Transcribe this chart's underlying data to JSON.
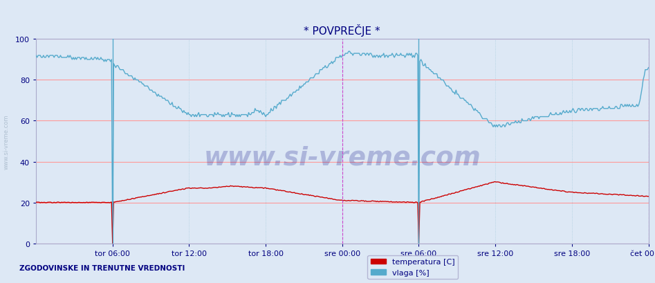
{
  "title": "* POVPREČJE *",
  "title_color": "#000080",
  "bg_color": "#dde8f5",
  "plot_bg_color": "#dde8f5",
  "ylim": [
    0,
    100
  ],
  "yticks": [
    0,
    20,
    40,
    60,
    80,
    100
  ],
  "grid_color_major": "#ff9999",
  "grid_color_minor": "#aaccdd",
  "xtick_labels": [
    "tor 06:00",
    "tor 12:00",
    "tor 18:00",
    "sre 00:00",
    "sre 06:00",
    "sre 12:00",
    "sre 18:00",
    "čet 00:00"
  ],
  "xtick_positions": [
    72,
    144,
    216,
    288,
    360,
    432,
    504,
    576
  ],
  "n_points": 577,
  "temp_color": "#cc0000",
  "hum_color": "#55aacc",
  "vline_solid_color": "#55aacc",
  "vline_dashed_color": "#cc44cc",
  "footer_text": "ZGODOVINSKE IN TRENUTNE VREDNOSTI",
  "footer_color": "#000080",
  "watermark": "www.si-vreme.com",
  "watermark_color": "#000080",
  "side_label": "www.si-vreme.com",
  "side_label_color": "#aabbcc",
  "legend_temp": "temperatura [C]",
  "legend_hum": "vlaga [%]"
}
